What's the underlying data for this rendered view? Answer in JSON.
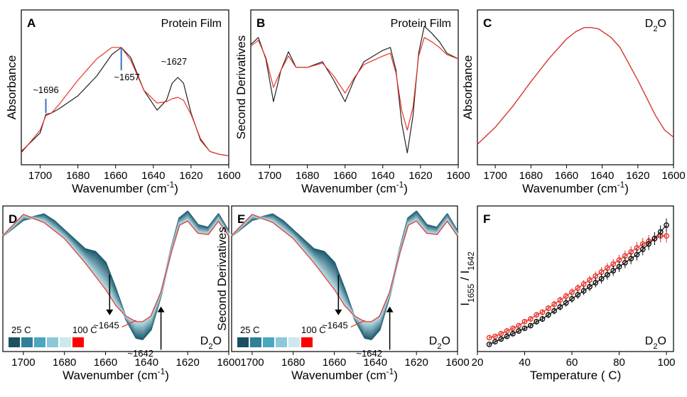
{
  "chart_data": [
    {
      "panel": "A",
      "type": "line",
      "title": "Protein Film",
      "xlabel": "Wavenumber (cm⁻¹)",
      "ylabel": "Absorbance",
      "xlim": [
        1710,
        1600
      ],
      "xticks": [
        1700,
        1680,
        1660,
        1640,
        1620,
        1600
      ],
      "ylim": [
        0,
        1
      ],
      "annotations": [
        "~1696",
        "~1657",
        "~1627"
      ],
      "series": [
        {
          "color": "#222222",
          "x": [
            1710,
            1700,
            1697,
            1694,
            1690,
            1680,
            1670,
            1662,
            1657,
            1652,
            1645,
            1638,
            1633,
            1630,
            1627,
            1624,
            1620,
            1615,
            1610,
            1605,
            1600
          ],
          "values": [
            0.05,
            0.18,
            0.31,
            0.32,
            0.35,
            0.44,
            0.58,
            0.73,
            0.78,
            0.71,
            0.48,
            0.34,
            0.41,
            0.53,
            0.57,
            0.53,
            0.32,
            0.13,
            0.05,
            0.03,
            0.02
          ]
        },
        {
          "color": "#e8332a",
          "x": [
            1710,
            1700,
            1697,
            1694,
            1690,
            1680,
            1670,
            1662,
            1657,
            1652,
            1645,
            1638,
            1633,
            1630,
            1627,
            1624,
            1620,
            1615,
            1610,
            1605,
            1600
          ],
          "values": [
            0.04,
            0.2,
            0.3,
            0.32,
            0.38,
            0.55,
            0.7,
            0.78,
            0.78,
            0.69,
            0.48,
            0.39,
            0.4,
            0.42,
            0.43,
            0.41,
            0.31,
            0.14,
            0.05,
            0.03,
            0.02
          ]
        }
      ]
    },
    {
      "panel": "B",
      "type": "line",
      "title": "Protein Film",
      "xlabel": "Wavenumber (cm⁻¹)",
      "ylabel": "Second Derivatives",
      "xlim": [
        1710,
        1600
      ],
      "xticks": [
        1700,
        1680,
        1660,
        1640,
        1620,
        1600
      ],
      "ylim": [
        0,
        1
      ],
      "series": [
        {
          "color": "#222222",
          "x": [
            1710,
            1706,
            1702,
            1698,
            1694,
            1690,
            1686,
            1680,
            1672,
            1666,
            1660,
            1655,
            1650,
            1645,
            1640,
            1636,
            1633,
            1630,
            1627,
            1624,
            1621,
            1618,
            1614,
            1610,
            1606,
            1600
          ],
          "values": [
            0.8,
            0.85,
            0.7,
            0.4,
            0.62,
            0.75,
            0.64,
            0.64,
            0.68,
            0.55,
            0.4,
            0.56,
            0.68,
            0.72,
            0.76,
            0.78,
            0.62,
            0.25,
            0.04,
            0.3,
            0.74,
            0.93,
            0.88,
            0.82,
            0.74,
            0.7
          ]
        },
        {
          "color": "#e8332a",
          "x": [
            1710,
            1706,
            1702,
            1698,
            1694,
            1690,
            1686,
            1680,
            1672,
            1666,
            1660,
            1655,
            1650,
            1645,
            1640,
            1636,
            1633,
            1630,
            1627,
            1624,
            1621,
            1618,
            1614,
            1610,
            1606,
            1600
          ],
          "values": [
            0.79,
            0.83,
            0.71,
            0.5,
            0.62,
            0.72,
            0.64,
            0.64,
            0.67,
            0.58,
            0.46,
            0.57,
            0.66,
            0.69,
            0.72,
            0.74,
            0.6,
            0.34,
            0.2,
            0.36,
            0.72,
            0.85,
            0.82,
            0.78,
            0.73,
            0.7
          ]
        }
      ]
    },
    {
      "panel": "C",
      "type": "line",
      "title": "D₂O",
      "xlabel": "Wavenumber (cm⁻¹)",
      "ylabel": "Absorbance",
      "xlim": [
        1710,
        1600
      ],
      "xticks": [
        1700,
        1680,
        1660,
        1640,
        1620,
        1600
      ],
      "ylim": [
        0,
        1
      ],
      "series": [
        {
          "color": "#222222",
          "x": [
            1710,
            1700,
            1690,
            1680,
            1670,
            1660,
            1655,
            1650,
            1646,
            1642,
            1635,
            1630,
            1620,
            1610,
            1605,
            1600
          ],
          "values": [
            0.1,
            0.22,
            0.37,
            0.54,
            0.7,
            0.84,
            0.89,
            0.92,
            0.92,
            0.91,
            0.85,
            0.78,
            0.55,
            0.3,
            0.2,
            0.15
          ]
        },
        {
          "color": "#e8332a",
          "x": [
            1710,
            1700,
            1690,
            1680,
            1670,
            1660,
            1655,
            1650,
            1646,
            1642,
            1635,
            1630,
            1620,
            1610,
            1605,
            1600
          ],
          "values": [
            0.1,
            0.22,
            0.37,
            0.54,
            0.7,
            0.84,
            0.89,
            0.92,
            0.92,
            0.91,
            0.85,
            0.78,
            0.55,
            0.3,
            0.2,
            0.15
          ]
        }
      ]
    },
    {
      "panel": "D",
      "type": "line",
      "title": "D₂O",
      "xlabel": "Wavenumber (cm⁻¹)",
      "ylabel": "Second Derivatives",
      "xlim": [
        1710,
        1600
      ],
      "xticks": [
        1700,
        1680,
        1660,
        1640,
        1620,
        1600
      ],
      "ylim": [
        0,
        1
      ],
      "legend": {
        "start": "25 C",
        "end": "100 C",
        "colors": [
          "#1d4f63",
          "#2f7f96",
          "#4ba6bf",
          "#8dc8d8",
          "#cfe7ef",
          "#ff0000"
        ]
      },
      "annotations": [
        "~1645",
        "~1642"
      ],
      "x": [
        1710,
        1700,
        1690,
        1685,
        1680,
        1670,
        1665,
        1660,
        1655,
        1650,
        1645,
        1642,
        1638,
        1633,
        1628,
        1624,
        1620,
        1615,
        1610,
        1605,
        1600
      ],
      "series": [
        {
          "color": "#1d4f63",
          "values": [
            0.82,
            0.94,
            0.98,
            0.93,
            0.86,
            0.72,
            0.7,
            0.62,
            0.42,
            0.2,
            0.06,
            0.05,
            0.12,
            0.38,
            0.72,
            0.95,
            1.0,
            0.9,
            0.88,
            0.98,
            0.85
          ]
        },
        {
          "color": "#e8332a",
          "values": [
            0.82,
            0.98,
            0.92,
            0.86,
            0.8,
            0.62,
            0.52,
            0.42,
            0.3,
            0.22,
            0.18,
            0.18,
            0.22,
            0.4,
            0.7,
            0.9,
            0.93,
            0.84,
            0.83,
            0.93,
            0.82
          ]
        }
      ]
    },
    {
      "panel": "E",
      "type": "line",
      "title": "D₂O",
      "xlabel": "Wavenumber (cm⁻¹)",
      "ylabel": "Second Derivatives",
      "xlim": [
        1710,
        1600
      ],
      "xticks": [
        1700,
        1680,
        1660,
        1640,
        1620,
        1600
      ],
      "ylim": [
        0,
        1
      ],
      "legend": {
        "start": "25 C",
        "end": "100 C",
        "colors": [
          "#1d4f63",
          "#2f7f96",
          "#4ba6bf",
          "#8dc8d8",
          "#cfe7ef",
          "#ff0000"
        ]
      },
      "annotations": [
        "~1645",
        "~1642"
      ],
      "x": [
        1710,
        1700,
        1690,
        1685,
        1680,
        1670,
        1665,
        1660,
        1655,
        1650,
        1645,
        1642,
        1638,
        1633,
        1628,
        1624,
        1620,
        1615,
        1610,
        1605,
        1600
      ],
      "series": [
        {
          "color": "#1d4f63",
          "values": [
            0.82,
            0.94,
            0.98,
            0.93,
            0.86,
            0.72,
            0.7,
            0.62,
            0.42,
            0.2,
            0.06,
            0.05,
            0.12,
            0.38,
            0.72,
            0.95,
            1.0,
            0.9,
            0.88,
            0.98,
            0.85
          ]
        },
        {
          "color": "#e8332a",
          "values": [
            0.82,
            0.98,
            0.92,
            0.86,
            0.8,
            0.62,
            0.52,
            0.42,
            0.3,
            0.22,
            0.18,
            0.18,
            0.22,
            0.4,
            0.7,
            0.9,
            0.93,
            0.84,
            0.83,
            0.93,
            0.82
          ]
        }
      ]
    },
    {
      "panel": "F",
      "type": "scatter",
      "title": "D₂O",
      "xlabel": "Temperature ( C)",
      "ylabel": "I1655 / I1642",
      "xlim": [
        20,
        103
      ],
      "xticks": [
        20,
        40,
        60,
        80,
        100
      ],
      "ylim": [
        0,
        1
      ],
      "x": [
        25,
        27.5,
        30,
        32.5,
        35,
        37.5,
        40,
        42.5,
        45,
        47.5,
        50,
        52.5,
        55,
        57.5,
        60,
        62.5,
        65,
        67.5,
        70,
        72.5,
        75,
        77.5,
        80,
        82.5,
        85,
        87.5,
        90,
        92.5,
        95,
        97.5,
        100
      ],
      "series": [
        {
          "color": "#e8332a",
          "values": [
            0.06,
            0.07,
            0.09,
            0.11,
            0.13,
            0.15,
            0.18,
            0.2,
            0.23,
            0.25,
            0.28,
            0.31,
            0.34,
            0.37,
            0.4,
            0.43,
            0.46,
            0.49,
            0.52,
            0.55,
            0.58,
            0.61,
            0.64,
            0.67,
            0.7,
            0.73,
            0.76,
            0.78,
            0.8,
            0.82,
            0.82
          ]
        },
        {
          "color": "#111111",
          "values": [
            0.01,
            0.03,
            0.05,
            0.07,
            0.09,
            0.11,
            0.13,
            0.15,
            0.18,
            0.2,
            0.23,
            0.26,
            0.29,
            0.32,
            0.35,
            0.38,
            0.41,
            0.44,
            0.47,
            0.5,
            0.53,
            0.56,
            0.59,
            0.62,
            0.65,
            0.68,
            0.72,
            0.76,
            0.8,
            0.85,
            0.9
          ]
        }
      ]
    }
  ]
}
